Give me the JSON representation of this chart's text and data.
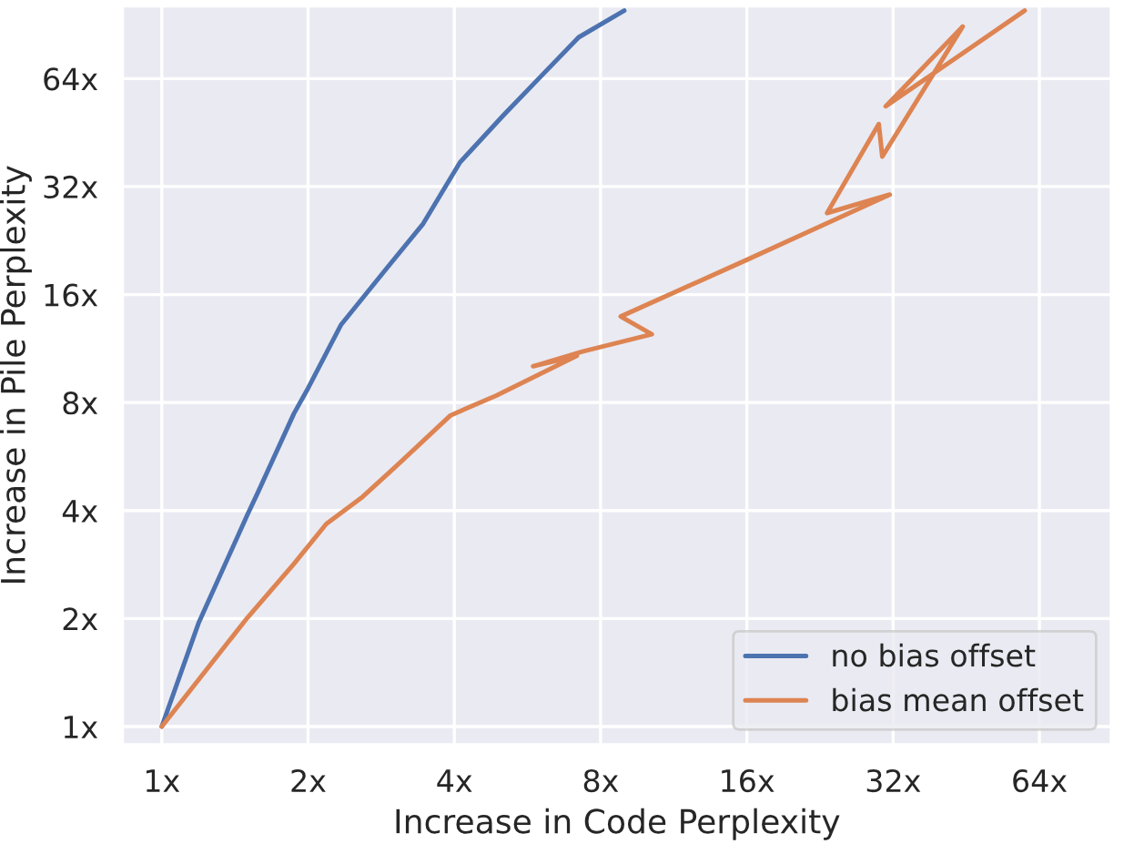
{
  "chart_data": {
    "type": "line",
    "xlabel": "Increase in Code Perplexity",
    "ylabel": "Increase in Pile Perplexity",
    "log": "xy",
    "grid": true,
    "legend": "bottom right",
    "marker": "none",
    "line_style": "solid",
    "xlim": [
      0.83,
      90
    ],
    "ylim": [
      0.89,
      102
    ],
    "xticks": [
      {
        "value": 1,
        "label": "1x"
      },
      {
        "value": 2,
        "label": "2x"
      },
      {
        "value": 4,
        "label": "4x"
      },
      {
        "value": 8,
        "label": "8x"
      },
      {
        "value": 16,
        "label": "16x"
      },
      {
        "value": 32,
        "label": "32x"
      },
      {
        "value": 64,
        "label": "64x"
      }
    ],
    "yticks": [
      {
        "value": 1,
        "label": "1x"
      },
      {
        "value": 2,
        "label": "2x"
      },
      {
        "value": 4,
        "label": "4x"
      },
      {
        "value": 8,
        "label": "8x"
      },
      {
        "value": 16,
        "label": "16x"
      },
      {
        "value": 32,
        "label": "32x"
      },
      {
        "value": 64,
        "label": "64x"
      }
    ],
    "series": [
      {
        "name": "no bias offset",
        "color": "#4c72b0",
        "x": [
          1,
          1.19,
          1.5,
          1.58,
          1.87,
          2,
          2.34,
          2.9,
          3.45,
          4.11,
          5.05,
          6.06,
          7.21,
          8.95
        ],
        "values": [
          1,
          1.94,
          3.89,
          4.52,
          7.45,
          8.77,
          13.2,
          18.9,
          25.2,
          37.4,
          50.6,
          65.4,
          83.4,
          99
        ]
      },
      {
        "name": "bias mean offset",
        "color": "#dd8452",
        "x": [
          1,
          1.5,
          1.87,
          2.18,
          2.59,
          3.01,
          3.93,
          4.88,
          7.15,
          5.81,
          7.34,
          10.2,
          8.8,
          16,
          31.5,
          23.4,
          29.9,
          30.4,
          44.5,
          30.9,
          59.7
        ],
        "values": [
          1,
          2.01,
          2.84,
          3.67,
          4.37,
          5.26,
          7.37,
          8.37,
          10.8,
          10.1,
          11.1,
          12.4,
          13.9,
          20,
          30.4,
          27,
          47.8,
          38.8,
          89.4,
          53.6,
          99
        ]
      }
    ]
  }
}
